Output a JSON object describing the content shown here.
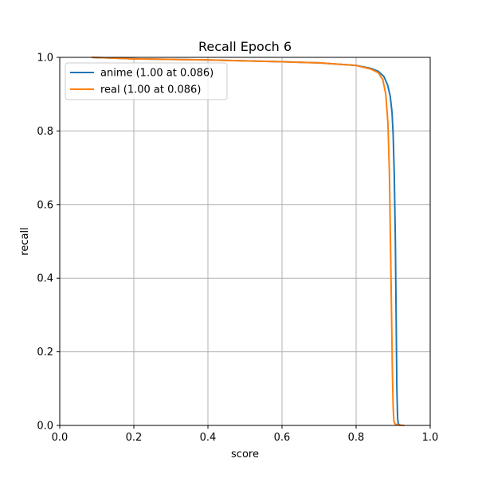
{
  "chart_data": {
    "type": "line",
    "title": "Recall Epoch 6",
    "xlabel": "score",
    "ylabel": "recall",
    "xlim": [
      0,
      1
    ],
    "ylim": [
      0,
      1
    ],
    "xticks": [
      "0.0",
      "0.2",
      "0.4",
      "0.6",
      "0.8",
      "1.0"
    ],
    "yticks": [
      "0.0",
      "0.2",
      "0.4",
      "0.6",
      "0.8",
      "1.0"
    ],
    "grid": true,
    "legend_position": "top-left",
    "series": [
      {
        "name": "anime (1.00 at 0.086)",
        "color": "#1f77b4",
        "x": [
          0.086,
          0.2,
          0.4,
          0.6,
          0.7,
          0.8,
          0.84,
          0.86,
          0.875,
          0.885,
          0.892,
          0.897,
          0.9,
          0.903,
          0.906,
          0.908,
          0.91,
          0.912,
          0.914,
          0.92
        ],
        "y": [
          1.0,
          0.996,
          0.993,
          0.988,
          0.985,
          0.978,
          0.97,
          0.962,
          0.948,
          0.925,
          0.895,
          0.85,
          0.79,
          0.68,
          0.5,
          0.3,
          0.1,
          0.02,
          0.004,
          0.0
        ]
      },
      {
        "name": "real (1.00 at 0.086)",
        "color": "#ff7f0e",
        "x": [
          0.086,
          0.2,
          0.4,
          0.6,
          0.7,
          0.8,
          0.84,
          0.86,
          0.872,
          0.88,
          0.886,
          0.89,
          0.893,
          0.896,
          0.898,
          0.9,
          0.902,
          0.905,
          0.915,
          0.93
        ],
        "y": [
          1.0,
          0.996,
          0.993,
          0.988,
          0.985,
          0.978,
          0.968,
          0.958,
          0.94,
          0.9,
          0.82,
          0.68,
          0.48,
          0.28,
          0.14,
          0.05,
          0.012,
          0.004,
          0.001,
          0.0
        ]
      }
    ]
  }
}
